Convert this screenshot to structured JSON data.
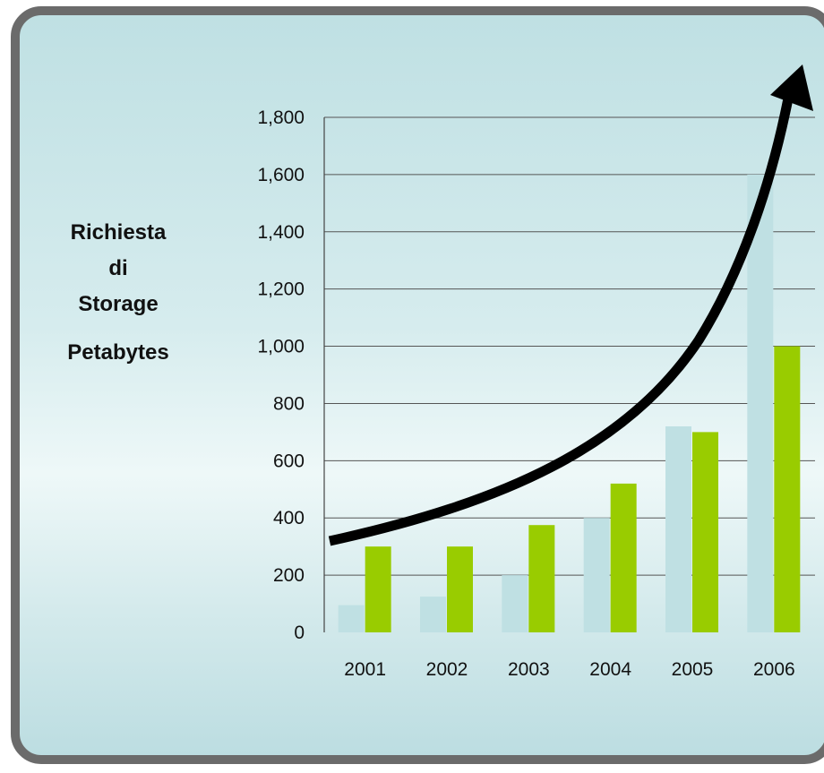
{
  "chart_data": {
    "type": "bar",
    "categories": [
      "2001",
      "2002",
      "2003",
      "2004",
      "2005",
      "2006"
    ],
    "series": [
      {
        "color": "#bfe0e3",
        "values": [
          95,
          125,
          200,
          400,
          720,
          1600
        ]
      },
      {
        "color": "#99cc00",
        "values": [
          300,
          300,
          375,
          520,
          700,
          1000
        ]
      }
    ],
    "ylabel_lines": [
      "Richiesta",
      "di",
      "Storage"
    ],
    "ylabel_unit": "Petabytes",
    "ylim": [
      0,
      1800
    ],
    "yticks": [
      0,
      200,
      400,
      600,
      800,
      1000,
      1200,
      1400,
      1600,
      1800
    ],
    "grid": true,
    "annotation": "trend-arrow"
  }
}
